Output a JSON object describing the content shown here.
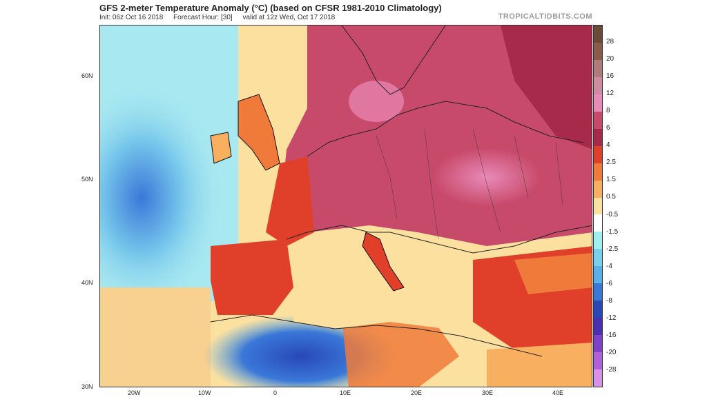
{
  "header": {
    "title": "GFS 2-meter Temperature Anomaly (°C) (based on CFSR 1981-2010 Climatology)",
    "init": "Init: 06z Oct 16 2018",
    "forecast_hour": "Forecast Hour: [30]",
    "valid": "valid at 12z Wed, Oct 17 2018",
    "brand": "TROPICALTIDBITS.COM"
  },
  "map": {
    "region": "Europe / North Atlantic / North Africa",
    "lat_labels": [
      "60N",
      "50N",
      "40N",
      "30N"
    ],
    "lon_labels": [
      "20W",
      "10W",
      "0",
      "10E",
      "20E",
      "30E",
      "40E"
    ]
  },
  "colorbar": {
    "labels": [
      "28",
      "20",
      "16",
      "12",
      "8",
      "6",
      "4",
      "2.5",
      "1.5",
      "0.5",
      "-0.5",
      "-1.5",
      "-2.5",
      "-4",
      "-6",
      "-8",
      "-12",
      "-16",
      "-20",
      "-28"
    ],
    "colors": [
      "#6b4a3a",
      "#8a5a4a",
      "#b07a7a",
      "#d08aa0",
      "#e88ab8",
      "#c84a6a",
      "#a82a4a",
      "#e0402a",
      "#f07a3a",
      "#f8b060",
      "#fce0a0",
      "#ffffff",
      "#a0f0f0",
      "#78d0ec",
      "#58b0e8",
      "#3a78d8",
      "#2848b8",
      "#4830b0",
      "#8040c8",
      "#b060d8",
      "#d890e8"
    ]
  }
}
